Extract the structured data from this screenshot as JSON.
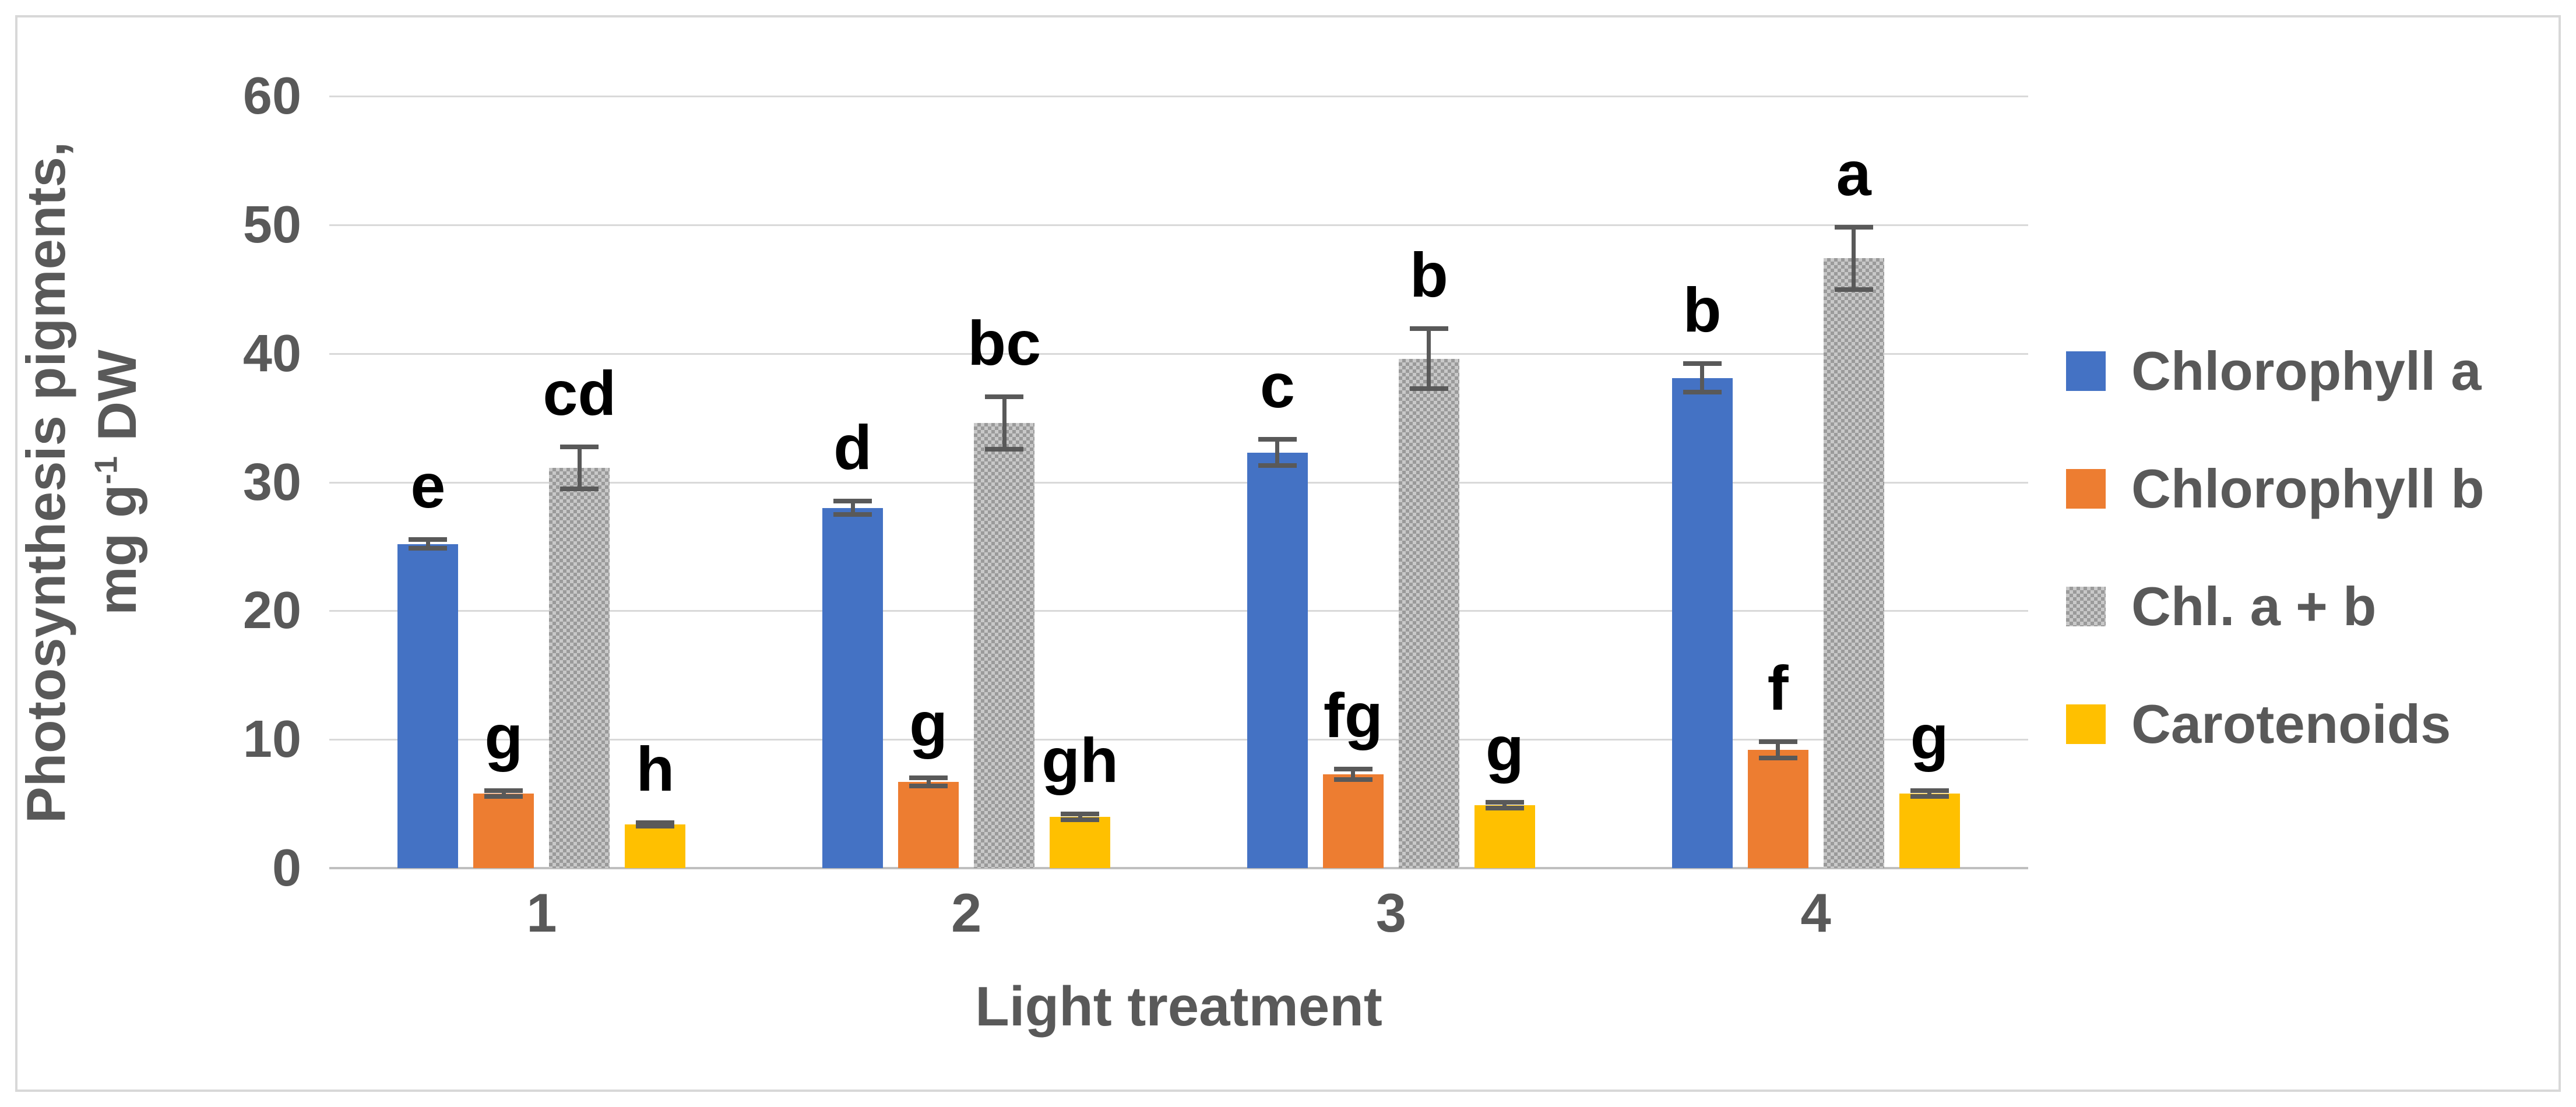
{
  "figure": {
    "background": "#ffffff",
    "border_color": "#D8D8D8",
    "text_color": "#595959",
    "letter_color": "#000000",
    "gridline_color": "#D9D9D9",
    "axis_line_color": "#BFBFBF",
    "error_bar_color": "#595959"
  },
  "y_axis": {
    "title_line1": "Photosynthesis pigments,",
    "title_line2_pre": "mg g",
    "title_line2_sup": "-1",
    "title_line2_post": " DW",
    "ticks": [
      0,
      10,
      20,
      30,
      40,
      50,
      60
    ]
  },
  "x_axis": {
    "title": "Light treatment",
    "ticks": [
      "1",
      "2",
      "3",
      "4"
    ]
  },
  "chart_data": {
    "type": "bar",
    "title": "",
    "xlabel": "Light treatment",
    "ylabel": "Photosynthesis pigments, mg g⁻¹ DW",
    "ylim": [
      0,
      60
    ],
    "ytick_interval": 10,
    "grid": true,
    "legend_position": "right",
    "error_bars": true,
    "significance_letters": true,
    "categories": [
      "1",
      "2",
      "3",
      "4"
    ],
    "series": [
      {
        "name": "Chlorophyll a",
        "color": "#4472C4",
        "pattern": false,
        "values": [
          25.2,
          28.0,
          32.3,
          38.1
        ],
        "errors": [
          0.5,
          0.7,
          1.2,
          1.3
        ],
        "letters": [
          "e",
          "d",
          "c",
          "b"
        ]
      },
      {
        "name": "Chlorophyll b",
        "color": "#ED7D31",
        "pattern": false,
        "values": [
          5.8,
          6.7,
          7.3,
          9.2
        ],
        "errors": [
          0.4,
          0.5,
          0.6,
          0.8
        ],
        "letters": [
          "g",
          "g",
          "fg",
          "f"
        ]
      },
      {
        "name": "Chl. a + b",
        "color": "#A6A6A6",
        "pattern": true,
        "values": [
          31.1,
          34.6,
          39.6,
          47.4
        ],
        "errors": [
          1.8,
          2.2,
          2.5,
          2.6
        ],
        "letters": [
          "cd",
          "bc",
          "b",
          "a"
        ]
      },
      {
        "name": "Carotenoids",
        "color": "#FFC000",
        "pattern": false,
        "values": [
          3.4,
          4.0,
          4.9,
          5.8
        ],
        "errors": [
          0.3,
          0.4,
          0.4,
          0.4
        ],
        "letters": [
          "h",
          "gh",
          "g",
          "g"
        ]
      }
    ]
  }
}
